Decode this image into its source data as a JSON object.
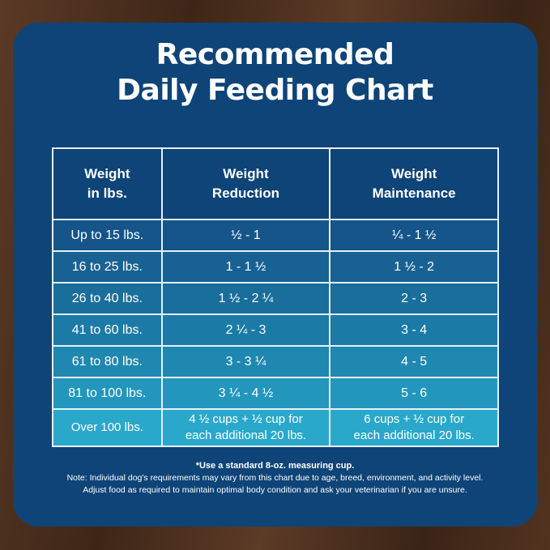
{
  "title": {
    "line1": "Recommended",
    "line2": "Daily Feeding Chart"
  },
  "table": {
    "headers": [
      [
        "Weight",
        "in lbs."
      ],
      [
        "Weight",
        "Reduction"
      ],
      [
        "Weight",
        "Maintenance"
      ]
    ],
    "rows": [
      [
        "Up to 15 lbs.",
        "½ - 1",
        "¼ - 1 ½"
      ],
      [
        "16 to 25 lbs.",
        "1 - 1 ½",
        "1 ½ - 2"
      ],
      [
        "26 to 40 lbs.",
        "1 ½ - 2 ¼",
        "2 - 3"
      ],
      [
        "41 to 60 lbs.",
        "2 ¼ - 3",
        "3 - 4"
      ],
      [
        "61 to 80 lbs.",
        "3 - 3 ¼",
        "4 - 5"
      ],
      [
        "81 to 100 lbs.",
        "3 ¼ - 4 ½",
        "5 - 6"
      ],
      [
        "Over 100 lbs.",
        "4 ½ cups  + ½ cup for|each additional 20 lbs.",
        "6 cups  + ½ cup for|each additional 20 lbs."
      ]
    ],
    "row_colors": [
      "#15558a",
      "#186293",
      "#1a6e9c",
      "#1c7ba6",
      "#1f88b0",
      "#2396bd",
      "#2aa8cc"
    ]
  },
  "notes": {
    "measure": "*Use a standard 8-oz. measuring cup.",
    "line1": "Note: Individual dog's requirements may vary from this chart due to age, breed, environment, and activity level.",
    "line2": "Adjust food as required to maintain optimal body condition and ask your veterinarian if you are unsure."
  }
}
